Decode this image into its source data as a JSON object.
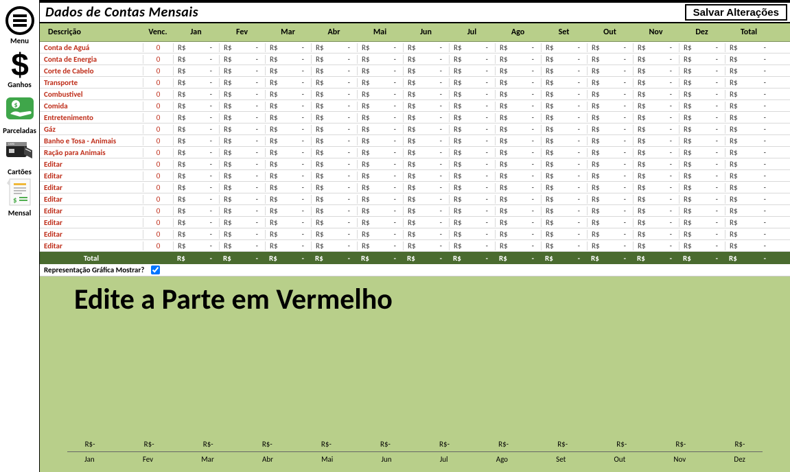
{
  "sidebar": {
    "items": [
      {
        "label": "Menu"
      },
      {
        "label": "Ganhos"
      },
      {
        "label": ""
      },
      {
        "label": "Parceladas"
      },
      {
        "label": "Cartões"
      },
      {
        "label": "Mensal"
      }
    ]
  },
  "header": {
    "title": "Dados de Contas Mensais",
    "save": "Salvar Alterações"
  },
  "columns": {
    "desc": "Descrição",
    "venc": "Venc.",
    "months": [
      "Jan",
      "Fev",
      "Mar",
      "Abr",
      "Mai",
      "Jun",
      "Jul",
      "Ago",
      "Set",
      "Out",
      "Nov",
      "Dez"
    ],
    "total": "Total"
  },
  "currency": "R$",
  "valueDash": "-",
  "vencDefault": "0",
  "rows": [
    {
      "desc": "Conta de Aguá"
    },
    {
      "desc": "Conta de Energia"
    },
    {
      "desc": "Corte de Cabelo"
    },
    {
      "desc": "Transporte"
    },
    {
      "desc": "Combustivel"
    },
    {
      "desc": "Comida"
    },
    {
      "desc": "Entretenimento"
    },
    {
      "desc": "Gáz"
    },
    {
      "desc": "Banho e Tosa - Animais"
    },
    {
      "desc": "Ração para Animais"
    },
    {
      "desc": "Editar"
    },
    {
      "desc": "Editar"
    },
    {
      "desc": "Editar"
    },
    {
      "desc": "Editar"
    },
    {
      "desc": "Editar"
    },
    {
      "desc": "Editar"
    },
    {
      "desc": "Editar"
    },
    {
      "desc": "Editar"
    }
  ],
  "totalRow": {
    "label": "Total"
  },
  "graph": {
    "toggleLabel": "Representação Gráfica Mostrar?",
    "checked": true,
    "title": "Edite a Parte em Vermelho",
    "valuePrefix": "R$-",
    "months": [
      "Jan",
      "Fev",
      "Mar",
      "Abr",
      "Mai",
      "Jun",
      "Jul",
      "Ago",
      "Set",
      "Out",
      "Nov",
      "Dez"
    ]
  },
  "colors": {
    "headerBg": "#b8cf8a",
    "totalBg": "#4a6b2f",
    "descText": "#bf2e1a",
    "graphBg": "#b8cf8a"
  }
}
